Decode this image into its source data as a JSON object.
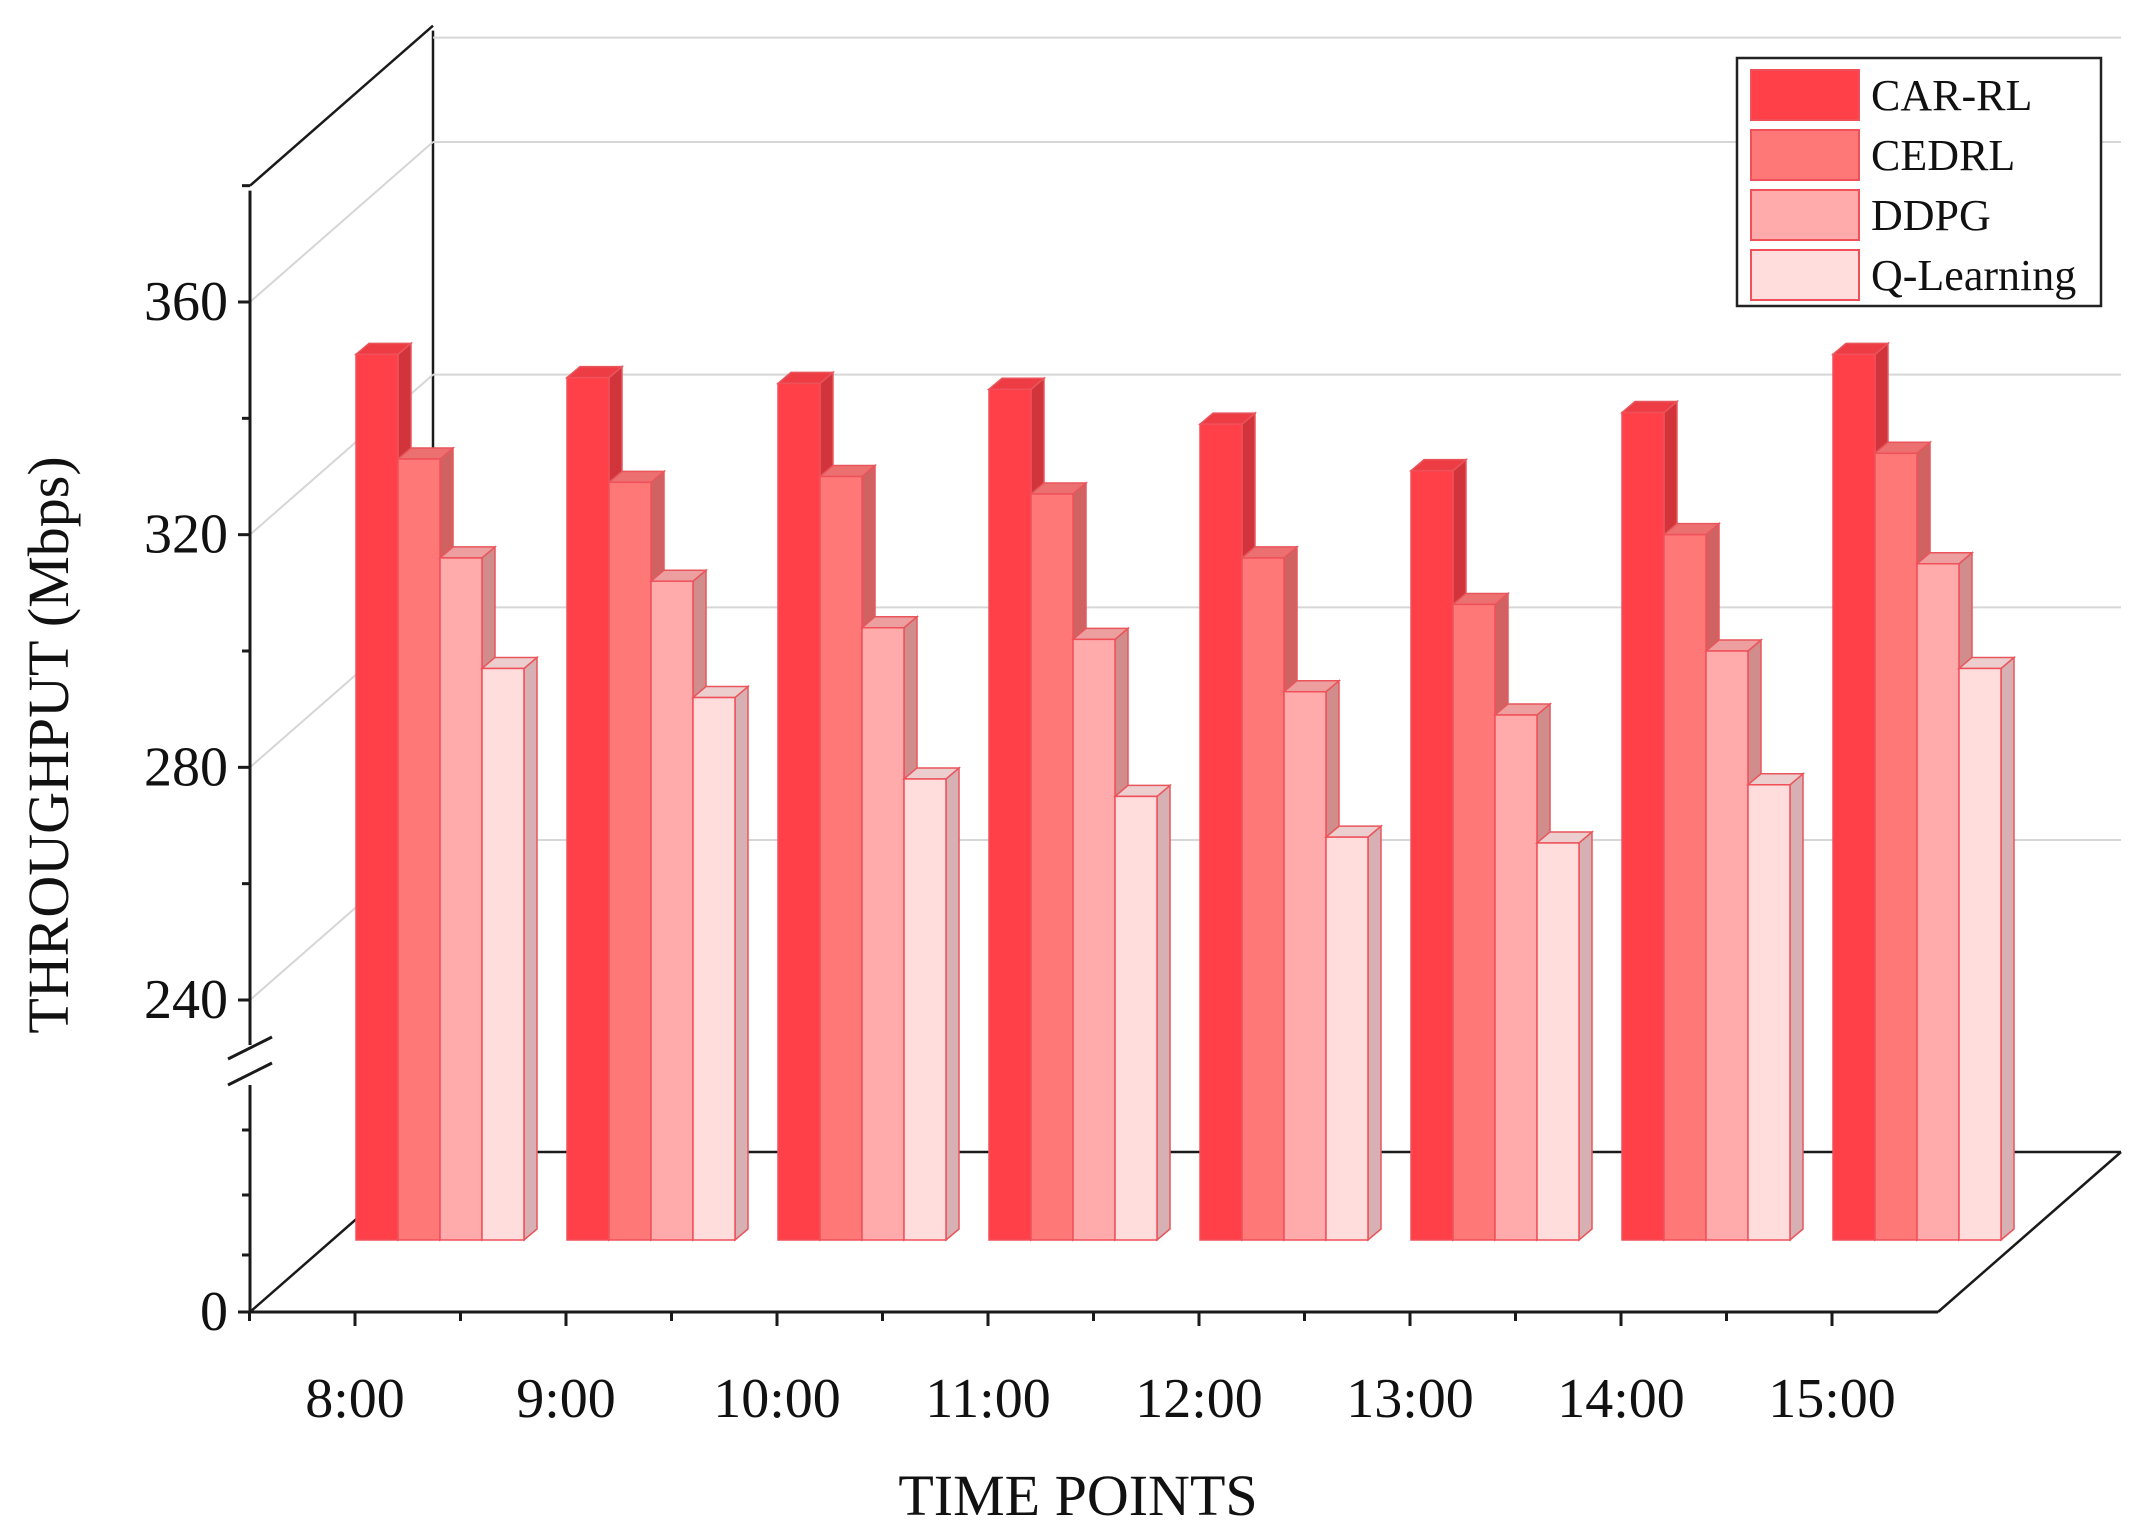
{
  "chart_data": {
    "type": "bar",
    "style": "3d-clustered",
    "xlabel": "TIME POINTS",
    "ylabel": "THROUGHPUT (Mbps)",
    "categories": [
      "8:00",
      "9:00",
      "10:00",
      "11:00",
      "12:00",
      "13:00",
      "14:00",
      "15:00"
    ],
    "y_ticks": [
      "0",
      "240",
      "280",
      "320",
      "360"
    ],
    "y_axis_break": true,
    "ylim_upper_segment": [
      228,
      380
    ],
    "grid": true,
    "legend_position": "top-right",
    "series": [
      {
        "name": "CAR-RL",
        "color": "#ff4048",
        "values": [
          351,
          347,
          346,
          345,
          339,
          331,
          341,
          351
        ]
      },
      {
        "name": "CEDRL",
        "color": "#ff7878",
        "values": [
          333,
          329,
          330,
          327,
          316,
          308,
          320,
          334
        ]
      },
      {
        "name": "DDPG",
        "color": "#ffabab",
        "values": [
          316,
          312,
          304,
          302,
          293,
          289,
          300,
          315
        ]
      },
      {
        "name": "Q-Learning",
        "color": "#ffdddd",
        "values": [
          297,
          292,
          278,
          275,
          268,
          267,
          277,
          297
        ]
      }
    ]
  }
}
